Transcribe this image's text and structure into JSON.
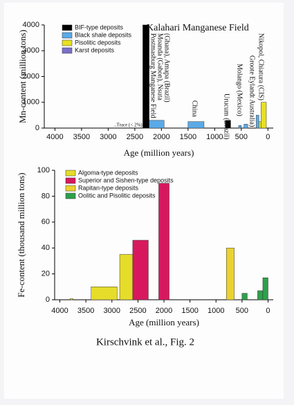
{
  "caption": "Kirschvink et al., Fig. 2",
  "chart_data": [
    {
      "type": "bar",
      "x_label": "Age (million years)",
      "y_label": "Mn-content (million tons)",
      "xlim": [
        4200,
        -100
      ],
      "xticks": [
        4000,
        3500,
        3000,
        2500,
        2000,
        1500,
        1000,
        500,
        0
      ],
      "ylim": [
        0,
        4000
      ],
      "yticks": [
        0,
        1000,
        2000,
        3000,
        4000
      ],
      "series": [
        {
          "name": "BIF-type deposits",
          "color": "#000000",
          "starts": [
            2350,
            800
          ],
          "ends": [
            2230,
            700
          ],
          "values": [
            4000,
            300
          ]
        },
        {
          "name": "Black shale deposits",
          "color": "#5aaae8",
          "starts": [
            2230,
            1500,
            550,
            450,
            220
          ],
          "ends": [
            1950,
            1200,
            500,
            380,
            170
          ],
          "values": [
            300,
            250,
            100,
            150,
            500
          ]
        },
        {
          "name": "Pisolitic deposits",
          "color": "#e8e020",
          "starts": [
            170,
            130
          ],
          "ends": [
            130,
            30
          ],
          "values": [
            250,
            1000
          ]
        },
        {
          "name": "Karst deposits",
          "color": "#7a70c8",
          "starts": [],
          "ends": [],
          "values": []
        }
      ],
      "annotations": [
        "Kalahari Manganese Field",
        "Postmasburg Manganese Field",
        "Moanda (Gabon), Nsuta",
        "(Ghana), Amapa (Brazil)",
        "China",
        "Urucum (Brazil)",
        "Molango (Mexico)",
        "Groote Eylandt Australia)",
        "Nikopol, Chiatura (CIS)",
        "..Trace (< 2%)"
      ]
    },
    {
      "type": "bar",
      "x_label": "Age (million years)",
      "y_label": "Fe-content (thousand million tons)",
      "xlim": [
        4100,
        -100
      ],
      "xticks": [
        4000,
        3500,
        3000,
        2500,
        2000,
        1500,
        1000,
        500,
        0
      ],
      "ylim": [
        0,
        100
      ],
      "yticks": [
        0,
        20,
        40,
        60,
        80,
        100
      ],
      "series": [
        {
          "name": "Algoma-type deposits",
          "color": "#e6dc2a",
          "starts": [
            3800,
            3400,
            2850
          ],
          "ends": [
            3750,
            2900,
            2600
          ],
          "values": [
            1,
            10,
            35
          ]
        },
        {
          "name": "Superior and Sishen-type deposits",
          "color": "#d8185e",
          "starts": [
            2600,
            2100
          ],
          "ends": [
            2300,
            1900
          ],
          "values": [
            46,
            90
          ]
        },
        {
          "name": "Rapitan-type deposits",
          "color": "#ecd230",
          "starts": [
            800
          ],
          "ends": [
            650
          ],
          "values": [
            40
          ]
        },
        {
          "name": "Oolitic and Pisolitic deposits",
          "color": "#2ea04c",
          "starts": [
            500,
            200,
            100
          ],
          "ends": [
            400,
            100,
            0
          ],
          "values": [
            5,
            7,
            17
          ]
        }
      ],
      "annotations": []
    }
  ]
}
